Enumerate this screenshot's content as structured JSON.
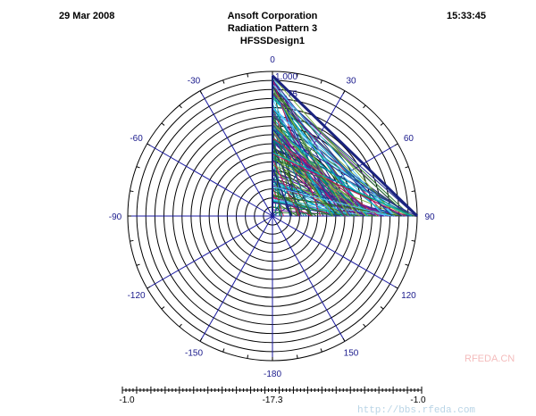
{
  "header": {
    "date": "29 Mar 2008",
    "company": "Ansoft Corporation",
    "title": "Radiation Pattern 3",
    "design": "HFSSDesign1",
    "time": "15:33:45"
  },
  "chart_data": {
    "type": "polar",
    "title": "Radiation Pattern 3",
    "angle_labels": [
      "0",
      "30",
      "60",
      "90",
      "120",
      "150",
      "-180",
      "-150",
      "-120",
      "-90",
      "-60",
      "-30"
    ],
    "angle_values": [
      0,
      30,
      60,
      90,
      120,
      150,
      180,
      -150,
      -120,
      -90,
      -60,
      -30
    ],
    "radial_max_label": "1.000",
    "radial_mid_label": ".75",
    "radial_range": [
      0,
      1
    ],
    "ring_count": 16,
    "filled_sector_deg": [
      0,
      90
    ],
    "series_note": "dense multi-colored trace set filling 0–90° sector",
    "colorbar": {
      "labels": [
        "-1.0",
        "-17.3",
        "-1.0"
      ]
    },
    "series_colors": [
      "#1a237e",
      "#2e7d32",
      "#00838f",
      "#6a1b9a",
      "#c2185b",
      "#4fc3f7",
      "#33691e",
      "#283593",
      "#00acc1",
      "#7cb342"
    ]
  },
  "watermark": {
    "brand": "RFEDA.CN",
    "url": "http://bbs.rfeda.com"
  }
}
